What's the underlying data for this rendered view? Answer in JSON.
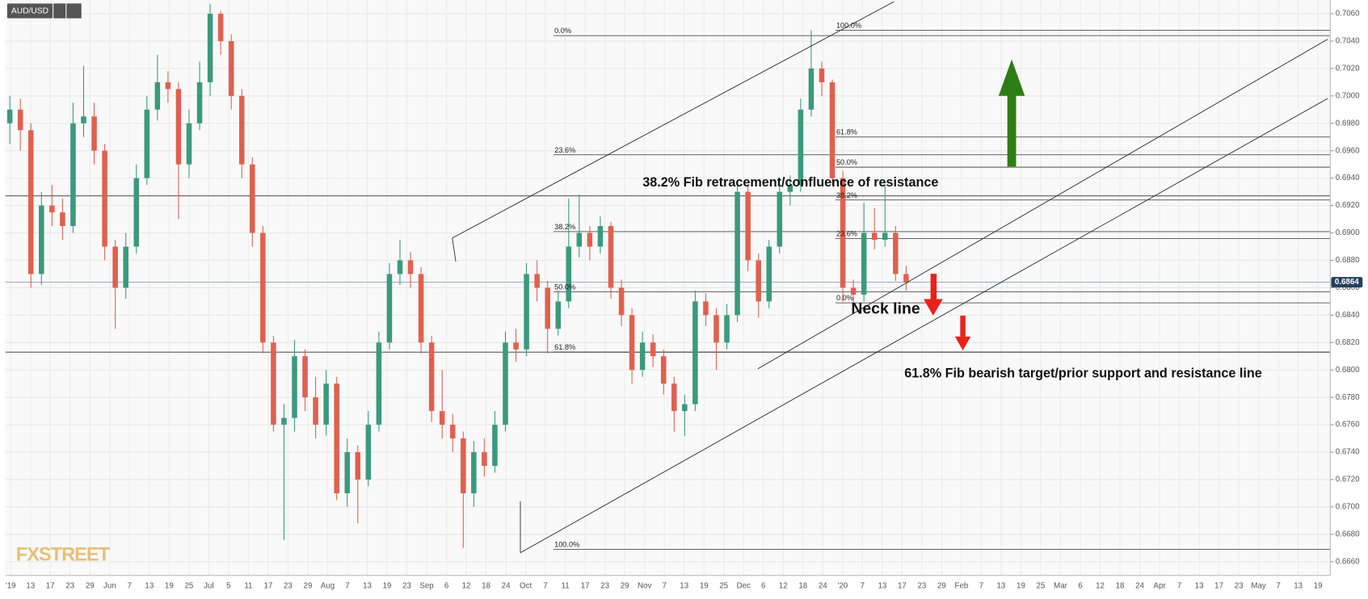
{
  "chart_data": {
    "type": "candlestick",
    "symbol": "AUD/USD",
    "logo": "FXSTREET",
    "ylim": [
      0.665,
      0.707
    ],
    "yticks": [
      {
        "value": 0.706,
        "label": "0.7060"
      },
      {
        "value": 0.704,
        "label": "0.7040"
      },
      {
        "value": 0.702,
        "label": "0.7020"
      },
      {
        "value": 0.7,
        "label": "0.7000"
      },
      {
        "value": 0.698,
        "label": "0.6980"
      },
      {
        "value": 0.696,
        "label": "0.6960"
      },
      {
        "value": 0.694,
        "label": "0.6940"
      },
      {
        "value": 0.692,
        "label": "0.6920"
      },
      {
        "value": 0.69,
        "label": "0.6900"
      },
      {
        "value": 0.688,
        "label": "0.6880"
      },
      {
        "value": 0.686,
        "label": "0.6860"
      },
      {
        "value": 0.684,
        "label": "0.6840"
      },
      {
        "value": 0.682,
        "label": "0.6820"
      },
      {
        "value": 0.68,
        "label": "0.6800"
      },
      {
        "value": 0.678,
        "label": "0.6780"
      },
      {
        "value": 0.676,
        "label": "0.6760"
      },
      {
        "value": 0.674,
        "label": "0.6740"
      },
      {
        "value": 0.672,
        "label": "0.6720"
      },
      {
        "value": 0.67,
        "label": "0.6700"
      },
      {
        "value": 0.668,
        "label": "0.6680"
      },
      {
        "value": 0.666,
        "label": "0.6660"
      }
    ],
    "xticks": [
      "'19",
      "13",
      "17",
      "23",
      "29",
      "Jun",
      "7",
      "13",
      "19",
      "25",
      "Jul",
      "5",
      "11",
      "17",
      "23",
      "29",
      "Aug",
      "7",
      "13",
      "19",
      "23",
      "Sep",
      "6",
      "12",
      "18",
      "24",
      "Oct",
      "7",
      "11",
      "17",
      "23",
      "29",
      "Nov",
      "7",
      "13",
      "19",
      "25",
      "Dec",
      "6",
      "12",
      "18",
      "24",
      "'20",
      "7",
      "13",
      "17",
      "23",
      "29",
      "Feb",
      "7",
      "13",
      "19",
      "25",
      "Mar",
      "6",
      "12",
      "18",
      "24",
      "Apr",
      "7",
      "13",
      "17",
      "23",
      "May",
      "7",
      "13",
      "19"
    ],
    "up_color": "#3a9a7e",
    "down_color": "#e0604f",
    "grid": true,
    "last_price": {
      "value": 0.6864,
      "label": "0.6864"
    },
    "candles": [
      [
        0.698,
        0.7,
        0.6965,
        0.699
      ],
      [
        0.699,
        0.6998,
        0.696,
        0.6975
      ],
      [
        0.6975,
        0.698,
        0.686,
        0.687
      ],
      [
        0.687,
        0.693,
        0.6862,
        0.692
      ],
      [
        0.692,
        0.6935,
        0.6905,
        0.6915
      ],
      [
        0.6915,
        0.6925,
        0.6895,
        0.6905
      ],
      [
        0.6905,
        0.6995,
        0.69,
        0.698
      ],
      [
        0.698,
        0.7022,
        0.697,
        0.6985
      ],
      [
        0.6985,
        0.6995,
        0.695,
        0.696
      ],
      [
        0.696,
        0.6965,
        0.688,
        0.689
      ],
      [
        0.689,
        0.6895,
        0.683,
        0.686
      ],
      [
        0.686,
        0.69,
        0.6852,
        0.689
      ],
      [
        0.689,
        0.695,
        0.6885,
        0.694
      ],
      [
        0.694,
        0.7,
        0.6935,
        0.699
      ],
      [
        0.699,
        0.703,
        0.6982,
        0.701
      ],
      [
        0.701,
        0.7018,
        0.6995,
        0.7005
      ],
      [
        0.7005,
        0.701,
        0.691,
        0.695
      ],
      [
        0.695,
        0.699,
        0.694,
        0.698
      ],
      [
        0.698,
        0.7025,
        0.6975,
        0.701
      ],
      [
        0.701,
        0.7067,
        0.7,
        0.706
      ],
      [
        0.706,
        0.7062,
        0.703,
        0.704
      ],
      [
        0.704,
        0.7045,
        0.699,
        0.7
      ],
      [
        0.7,
        0.7005,
        0.694,
        0.695
      ],
      [
        0.695,
        0.6955,
        0.689,
        0.69
      ],
      [
        0.69,
        0.6905,
        0.6812,
        0.682
      ],
      [
        0.682,
        0.6825,
        0.6755,
        0.676
      ],
      [
        0.676,
        0.6775,
        0.6676,
        0.6765
      ],
      [
        0.6765,
        0.6822,
        0.6755,
        0.681
      ],
      [
        0.681,
        0.6815,
        0.677,
        0.678
      ],
      [
        0.678,
        0.6795,
        0.675,
        0.676
      ],
      [
        0.676,
        0.68,
        0.6752,
        0.679
      ],
      [
        0.679,
        0.6795,
        0.6705,
        0.671
      ],
      [
        0.671,
        0.675,
        0.67,
        0.674
      ],
      [
        0.674,
        0.6745,
        0.6688,
        0.672
      ],
      [
        0.672,
        0.677,
        0.6715,
        0.676
      ],
      [
        0.676,
        0.6828,
        0.6755,
        0.682
      ],
      [
        0.682,
        0.6878,
        0.6815,
        0.687
      ],
      [
        0.687,
        0.6895,
        0.6862,
        0.688
      ],
      [
        0.688,
        0.6886,
        0.686,
        0.687
      ],
      [
        0.687,
        0.6875,
        0.6812,
        0.682
      ],
      [
        0.682,
        0.6825,
        0.6762,
        0.677
      ],
      [
        0.677,
        0.68,
        0.675,
        0.676
      ],
      [
        0.676,
        0.6768,
        0.674,
        0.675
      ],
      [
        0.675,
        0.6755,
        0.667,
        0.671
      ],
      [
        0.671,
        0.6748,
        0.67,
        0.674
      ],
      [
        0.674,
        0.675,
        0.6722,
        0.673
      ],
      [
        0.673,
        0.677,
        0.6725,
        0.676
      ],
      [
        0.676,
        0.6828,
        0.6755,
        0.682
      ],
      [
        0.682,
        0.683,
        0.6806,
        0.6815
      ],
      [
        0.6815,
        0.6878,
        0.681,
        0.687
      ],
      [
        0.687,
        0.688,
        0.685,
        0.686
      ],
      [
        0.686,
        0.6865,
        0.6812,
        0.683
      ],
      [
        0.683,
        0.6858,
        0.6825,
        0.685
      ],
      [
        0.685,
        0.6925,
        0.6845,
        0.689
      ],
      [
        0.689,
        0.6928,
        0.6882,
        0.69
      ],
      [
        0.69,
        0.6905,
        0.688,
        0.689
      ],
      [
        0.689,
        0.6912,
        0.6885,
        0.6905
      ],
      [
        0.6905,
        0.6908,
        0.6852,
        0.686
      ],
      [
        0.686,
        0.6866,
        0.6832,
        0.684
      ],
      [
        0.684,
        0.6845,
        0.679,
        0.68
      ],
      [
        0.68,
        0.6828,
        0.6795,
        0.682
      ],
      [
        0.682,
        0.6826,
        0.6802,
        0.681
      ],
      [
        0.681,
        0.6815,
        0.6782,
        0.679
      ],
      [
        0.679,
        0.6795,
        0.6755,
        0.677
      ],
      [
        0.677,
        0.6782,
        0.6752,
        0.6775
      ],
      [
        0.6775,
        0.6858,
        0.677,
        0.685
      ],
      [
        0.685,
        0.6856,
        0.6832,
        0.684
      ],
      [
        0.684,
        0.6845,
        0.68,
        0.682
      ],
      [
        0.682,
        0.6848,
        0.6815,
        0.684
      ],
      [
        0.684,
        0.6935,
        0.6835,
        0.693
      ],
      [
        0.693,
        0.6935,
        0.6872,
        0.688
      ],
      [
        0.688,
        0.6885,
        0.6838,
        0.685
      ],
      [
        0.685,
        0.6895,
        0.6845,
        0.689
      ],
      [
        0.689,
        0.6935,
        0.6885,
        0.693
      ],
      [
        0.693,
        0.6942,
        0.692,
        0.6935
      ],
      [
        0.6935,
        0.6998,
        0.693,
        0.699
      ],
      [
        0.699,
        0.7048,
        0.6985,
        0.702
      ],
      [
        0.702,
        0.7025,
        0.7,
        0.701
      ],
      [
        0.701,
        0.7012,
        0.6935,
        0.694
      ],
      [
        0.694,
        0.6945,
        0.685,
        0.686
      ],
      [
        0.686,
        0.6866,
        0.6845,
        0.6855
      ],
      [
        0.6855,
        0.6922,
        0.685,
        0.69
      ],
      [
        0.69,
        0.6918,
        0.6888,
        0.6895
      ],
      [
        0.6895,
        0.6935,
        0.689,
        0.69
      ],
      [
        0.69,
        0.6905,
        0.6865,
        0.687
      ],
      [
        0.687,
        0.6876,
        0.6858,
        0.6864
      ]
    ],
    "horizontal_lines": [
      0.6927,
      0.6813
    ],
    "fib_left": [
      {
        "label": "0.0%",
        "price": 0.7044
      },
      {
        "label": "23.6%",
        "price": 0.6957
      },
      {
        "label": "38.2%",
        "price": 0.6901
      },
      {
        "label": "50.0%",
        "price": 0.6857
      },
      {
        "label": "61.8%",
        "price": 0.6813
      },
      {
        "label": "100.0%",
        "price": 0.6669
      }
    ],
    "fib_right": [
      {
        "label": "100.0%",
        "price": 0.7048
      },
      {
        "label": "61.8%",
        "price": 0.697
      },
      {
        "label": "50.0%",
        "price": 0.6948
      },
      {
        "label": "38.2%",
        "price": 0.6924
      },
      {
        "label": "23.6%",
        "price": 0.6896
      },
      {
        "label": "0.0%",
        "price": 0.6849
      }
    ],
    "annotations": [
      "38.2% Fib retracement/confluence of resistance",
      "Neck line",
      "61.8% Fib bearish target/prior support and resistance line"
    ]
  }
}
